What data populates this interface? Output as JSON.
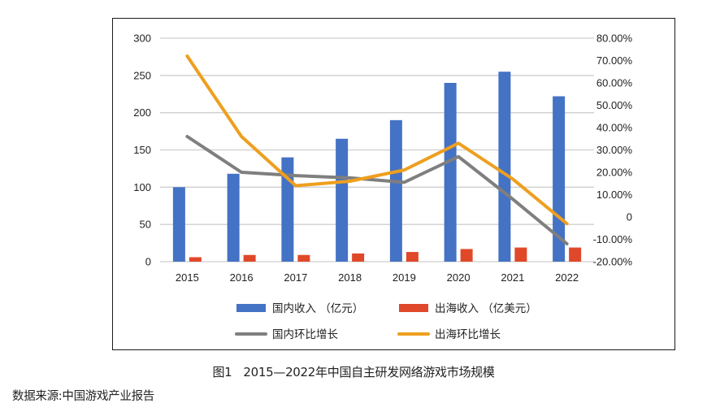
{
  "caption": {
    "figure_label": "图1",
    "text": "2015—2022年中国自主研发网络游戏市场规模"
  },
  "source_note": "数据来源:中国游戏产业报告",
  "chart_data": {
    "type": "bar",
    "title": "2015—2022年中国自主研发网络游戏市场规模",
    "xlabel": "",
    "ylabel": "",
    "categories": [
      "2015",
      "2016",
      "2017",
      "2018",
      "2019",
      "2020",
      "2021",
      "2022"
    ],
    "y_left": {
      "range": [
        0,
        300
      ],
      "ticks": [
        "0",
        "50",
        "100",
        "150",
        "200",
        "250",
        "300"
      ],
      "tick_values": [
        0,
        50,
        100,
        150,
        200,
        250,
        300
      ]
    },
    "y_right": {
      "range": [
        -0.2,
        0.8
      ],
      "ticks": [
        "-20.00%",
        "-10.00%",
        "0",
        "10.00%",
        "20.00%",
        "30.00%",
        "40.00%",
        "50.00%",
        "60.00%",
        "70.00%",
        "80.00%"
      ],
      "tick_values": [
        -0.2,
        -0.1,
        0,
        0.1,
        0.2,
        0.3,
        0.4,
        0.5,
        0.6,
        0.7,
        0.8
      ]
    },
    "grid": true,
    "legend_position": "bottom",
    "series": [
      {
        "name": "国内收入 （亿元）",
        "kind": "bar",
        "axis": "left",
        "color": "#4472C4",
        "values": [
          100,
          118,
          140,
          165,
          190,
          240,
          255,
          222
        ]
      },
      {
        "name": "出海收入 （亿美元）",
        "kind": "bar",
        "axis": "left",
        "color": "#E0482A",
        "values": [
          6,
          9,
          9,
          11,
          13,
          17,
          19,
          19
        ]
      },
      {
        "name": "国内环比增长",
        "kind": "line",
        "axis": "right",
        "color": "#7F7F7F",
        "values": [
          0.36,
          0.2,
          0.185,
          0.175,
          0.155,
          0.27,
          0.08,
          -0.12
        ]
      },
      {
        "name": "出海环比增长",
        "kind": "line",
        "axis": "right",
        "color": "#EE9F1F",
        "values": [
          0.72,
          0.36,
          0.14,
          0.16,
          0.21,
          0.33,
          0.17,
          -0.03
        ]
      }
    ]
  }
}
